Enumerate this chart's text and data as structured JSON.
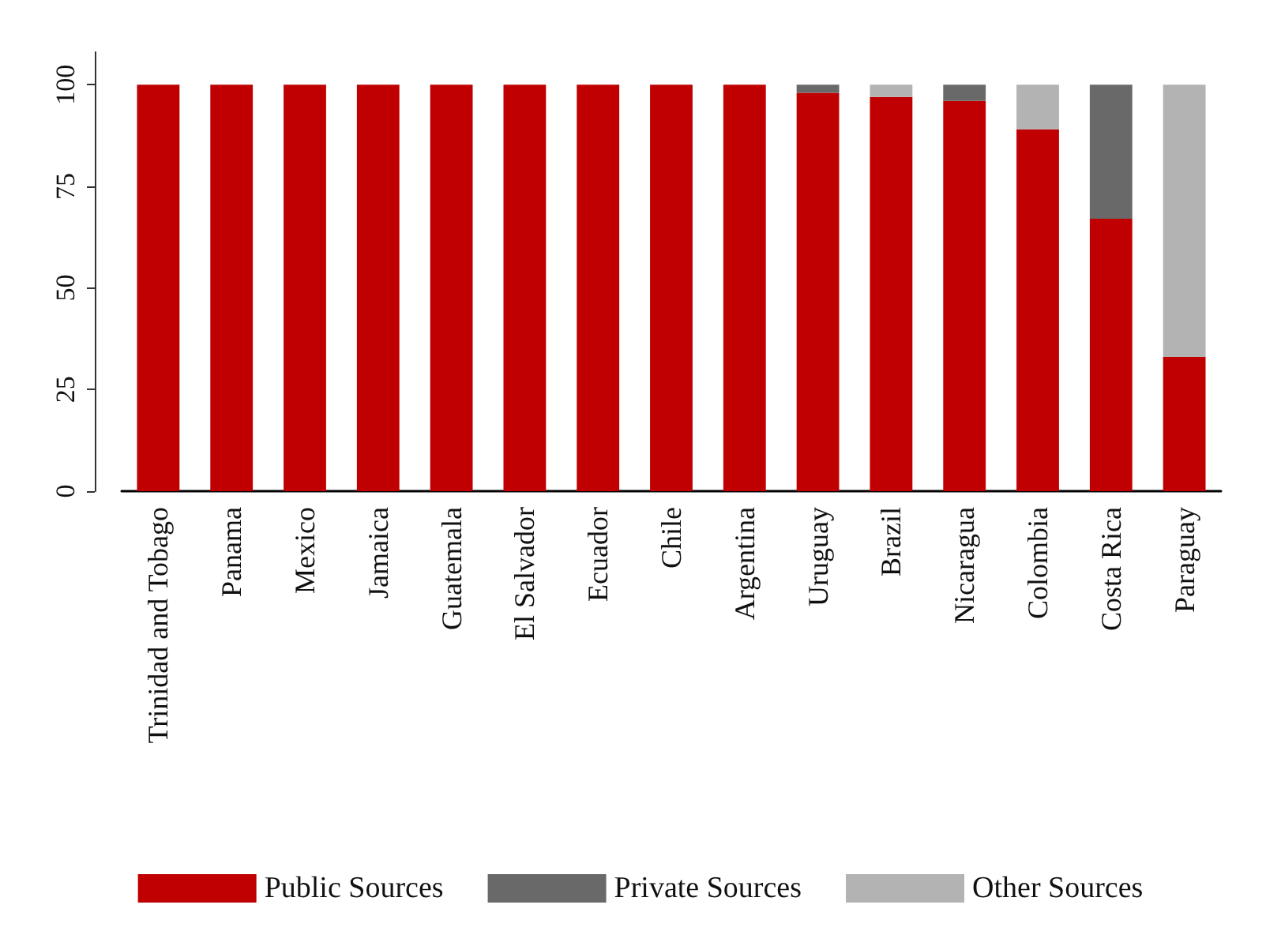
{
  "chart_data": {
    "type": "bar",
    "stacked": true,
    "categories": [
      "Trinidad and Tobago",
      "Panama",
      "Mexico",
      "Jamaica",
      "Guatemala",
      "El Salvador",
      "Ecuador",
      "Chile",
      "Argentina",
      "Uruguay",
      "Brazil",
      "Nicaragua",
      "Colombia",
      "Costa Rica",
      "Paraguay"
    ],
    "series": [
      {
        "name": "Public Sources",
        "color": "#c00000",
        "values": [
          100,
          100,
          100,
          100,
          100,
          100,
          100,
          100,
          100,
          98,
          97,
          96,
          89,
          67,
          33
        ]
      },
      {
        "name": "Private Sources",
        "color": "#696969",
        "values": [
          0,
          0,
          0,
          0,
          0,
          0,
          0,
          0,
          0,
          2,
          0,
          4,
          0,
          33,
          0
        ]
      },
      {
        "name": "Other Sources",
        "color": "#b3b3b3",
        "values": [
          0,
          0,
          0,
          0,
          0,
          0,
          0,
          0,
          0,
          0,
          3,
          0,
          11,
          0,
          67
        ]
      }
    ],
    "ylim": [
      0,
      108
    ],
    "yticks": [
      0,
      25,
      50,
      75,
      100
    ],
    "grid": false,
    "legend": "bottom"
  }
}
